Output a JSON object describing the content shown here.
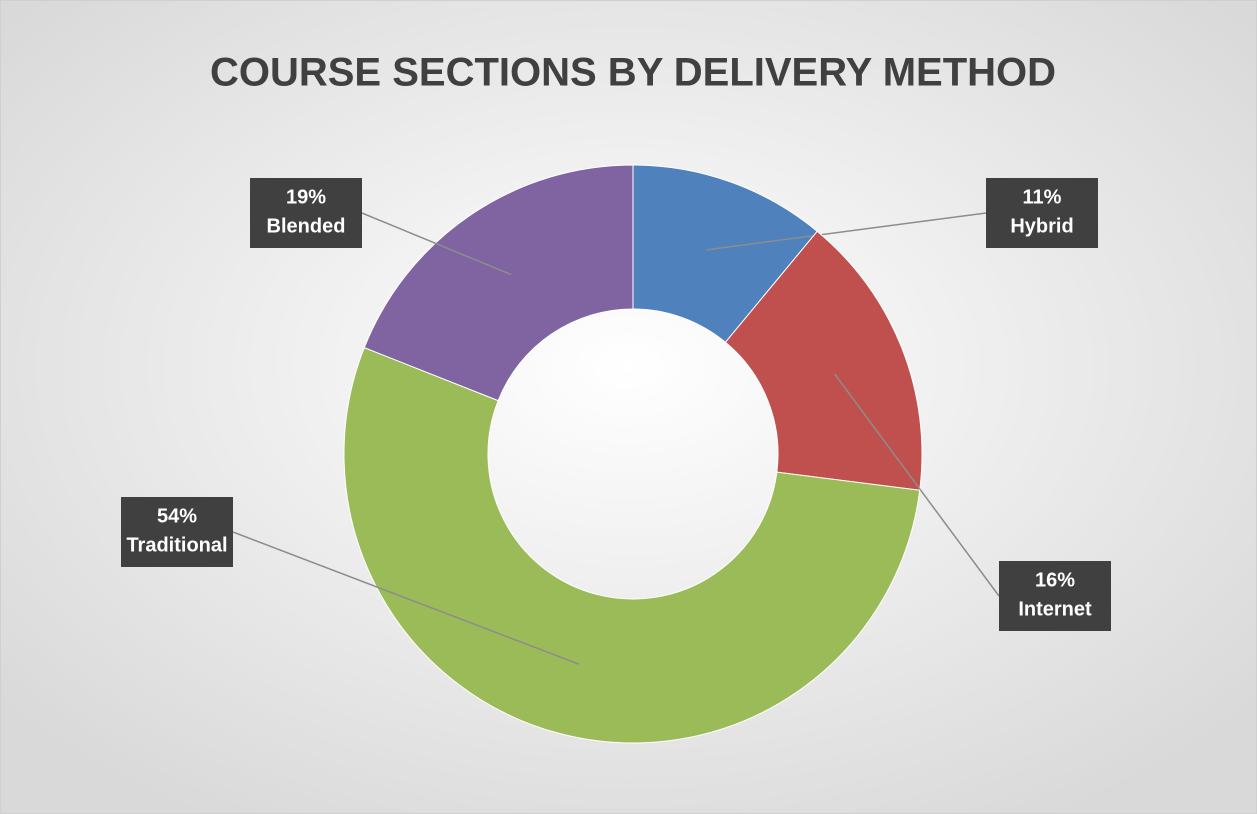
{
  "chart_data": {
    "type": "donut",
    "title": "COURSE SECTIONS BY DELIVERY METHOD",
    "categories": [
      "Hybrid",
      "Internet",
      "Traditional",
      "Blended"
    ],
    "values": [
      11,
      16,
      54,
      19
    ],
    "value_labels": [
      "11%",
      "16%",
      "54%",
      "19%"
    ],
    "colors": [
      "#4f81bd",
      "#c0504d",
      "#9bbb59",
      "#8064a2"
    ]
  }
}
